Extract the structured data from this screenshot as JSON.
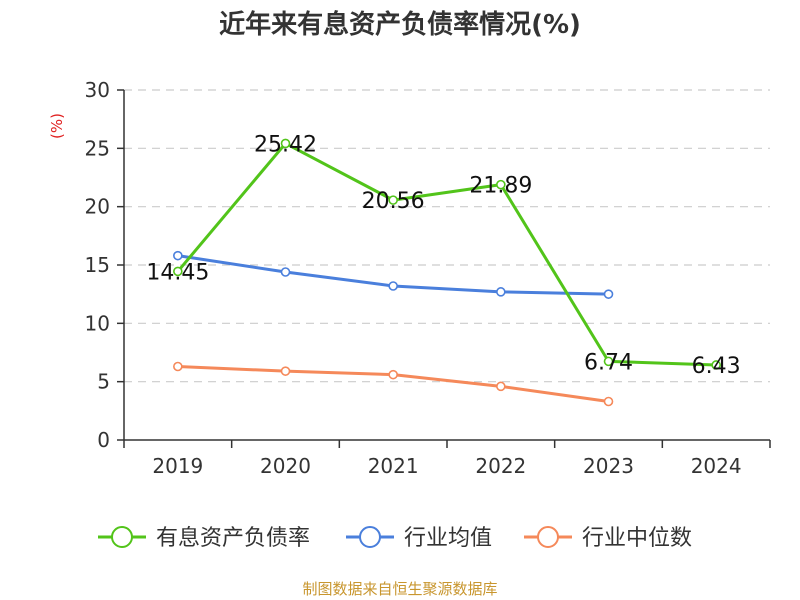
{
  "chart_data": {
    "type": "line",
    "title": "近年来有息资产负债率情况(%)",
    "ylabel": "(%)",
    "categories": [
      "2019",
      "2020",
      "2021",
      "2022",
      "2023",
      "2024"
    ],
    "ylim": [
      0,
      30
    ],
    "yticks": [
      0,
      5,
      10,
      15,
      20,
      25,
      30
    ],
    "grid": true,
    "legend_position": "bottom",
    "series": [
      {
        "name": "有息资产负债率",
        "color": "#52c41a",
        "values": [
          14.45,
          25.42,
          20.56,
          21.89,
          6.74,
          6.43
        ],
        "labels": [
          "14.45",
          "25.42",
          "20.56",
          "21.89",
          "6.74",
          "6.43"
        ]
      },
      {
        "name": "行业均值",
        "color": "#4a7fdc",
        "values": [
          15.8,
          14.4,
          13.2,
          12.7,
          12.5,
          null
        ]
      },
      {
        "name": "行业中位数",
        "color": "#f5895a",
        "values": [
          6.3,
          5.9,
          5.6,
          4.6,
          3.3,
          null
        ]
      }
    ]
  },
  "source_text": "制图数据来自恒生聚源数据库",
  "colors": {
    "axis": "#333333",
    "grid": "#cccccc",
    "unit_label": "#e02020",
    "source": "#c8962e",
    "title": "#333333"
  }
}
